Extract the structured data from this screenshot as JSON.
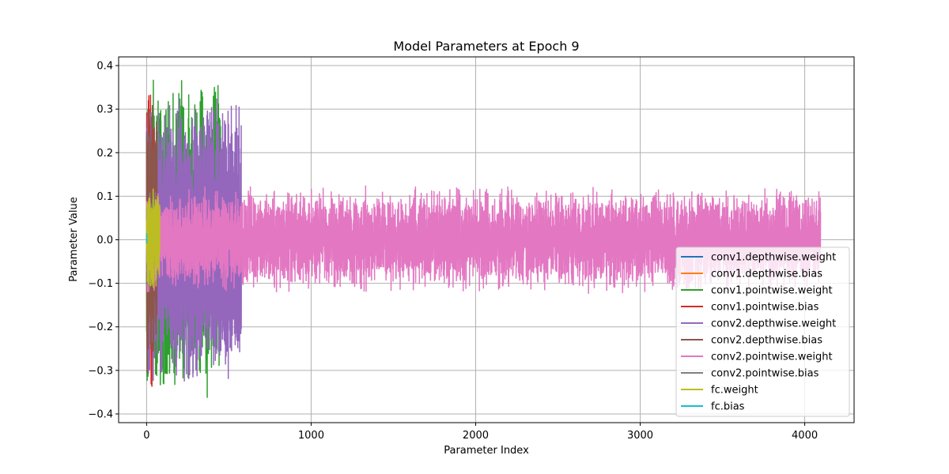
{
  "chart_data": {
    "type": "line",
    "title": "Model Parameters at Epoch 9",
    "xlabel": "Parameter Index",
    "ylabel": "Parameter Value",
    "xlim": [
      -170,
      4300
    ],
    "ylim": [
      -0.42,
      0.42
    ],
    "xticks": [
      0,
      1000,
      2000,
      3000,
      4000
    ],
    "xtick_labels": [
      "0",
      "1000",
      "2000",
      "3000",
      "4000"
    ],
    "yticks": [
      -0.4,
      -0.3,
      -0.2,
      -0.1,
      0.0,
      0.1,
      0.2,
      0.3,
      0.4
    ],
    "ytick_labels": [
      "−0.4",
      "−0.3",
      "−0.2",
      "−0.1",
      "0.0",
      "0.1",
      "0.2",
      "0.3",
      "0.4"
    ],
    "grid": true,
    "legend_position": "lower-right",
    "series": [
      {
        "name": "conv1.depthwise.weight",
        "color": "#1f77b4",
        "x_range": [
          0,
          9
        ],
        "amplitude": 0.3
      },
      {
        "name": "conv1.depthwise.bias",
        "color": "#ff7f0e",
        "x_range": [
          0,
          1
        ],
        "amplitude": 0.3
      },
      {
        "name": "conv1.pointwise.weight",
        "color": "#2ca02c",
        "x_range": [
          0,
          450
        ],
        "amplitude": 0.375
      },
      {
        "name": "conv1.pointwise.bias",
        "color": "#d62728",
        "x_range": [
          0,
          50
        ],
        "amplitude": 0.375
      },
      {
        "name": "conv2.depthwise.weight",
        "color": "#9467bd",
        "x_range": [
          0,
          576
        ],
        "amplitude": 0.33
      },
      {
        "name": "conv2.depthwise.bias",
        "color": "#8c564b",
        "x_range": [
          0,
          64
        ],
        "amplitude": 0.34
      },
      {
        "name": "conv2.pointwise.weight",
        "color": "#e377c2",
        "x_range": [
          0,
          4096
        ],
        "amplitude": 0.125
      },
      {
        "name": "conv2.pointwise.bias",
        "color": "#7f7f7f",
        "x_range": [
          0,
          64
        ],
        "amplitude": 0.12
      },
      {
        "name": "fc.weight",
        "color": "#bcbd22",
        "x_range": [
          0,
          80
        ],
        "amplitude": 0.125
      },
      {
        "name": "fc.bias",
        "color": "#17becf",
        "x_range": [
          0,
          1
        ],
        "amplitude": 0.05
      }
    ]
  }
}
